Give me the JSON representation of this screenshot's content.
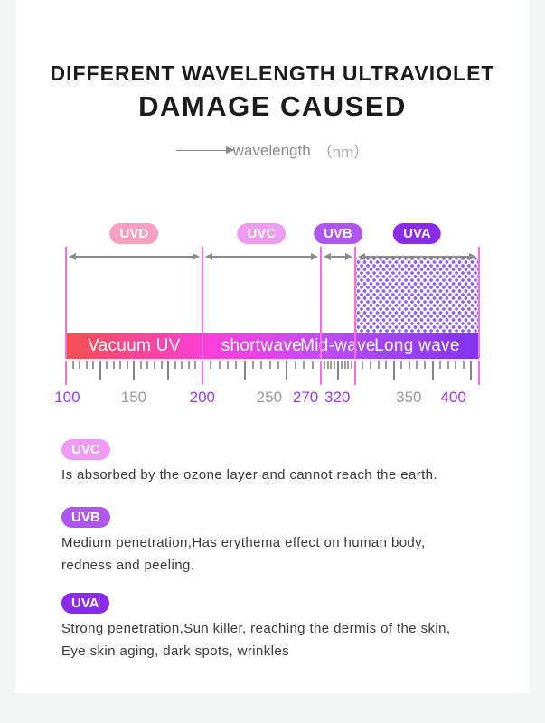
{
  "header": {
    "title_line1": "DIFFERENT WAVELENGTH ULTRAVIOLET",
    "title_line2": "DAMAGE CAUSED",
    "axis_label": "wavelength",
    "axis_unit": "（nm）"
  },
  "chart_data": {
    "type": "band-scale",
    "title": "Different wavelength ultraviolet damage caused",
    "axis": {
      "label": "wavelength",
      "unit": "nm",
      "min": 100,
      "max": 400
    },
    "minor_step_nm": 5,
    "tall_every": 5,
    "bands": [
      {
        "name": "UVD",
        "range_nm": [
          100,
          200
        ],
        "bar_label": "Vacuum UV",
        "badge_color": "#f9a0c0",
        "start_pct": 0,
        "end_pct": 33,
        "dotted": false
      },
      {
        "name": "UVC",
        "range_nm": [
          200,
          270
        ],
        "bar_label": "shortwave",
        "badge_color": "#ee9bf2",
        "start_pct": 33,
        "end_pct": 61.7,
        "dotted": false
      },
      {
        "name": "UVB",
        "range_nm": [
          270,
          320
        ],
        "bar_label": "Mid-wave",
        "badge_color": "#ae56ee",
        "start_pct": 61.7,
        "end_pct": 70,
        "dotted": false
      },
      {
        "name": "UVA",
        "range_nm": [
          320,
          400
        ],
        "bar_label": "Long wave",
        "badge_color": "#8a2be8",
        "start_pct": 70,
        "end_pct": 100,
        "dotted": true
      }
    ],
    "tick_labels": [
      {
        "value": "100",
        "pct": 0.3,
        "highlight": true
      },
      {
        "value": "150",
        "pct": 16.4,
        "highlight": false
      },
      {
        "value": "200",
        "pct": 33,
        "highlight": true
      },
      {
        "value": "250",
        "pct": 49.2,
        "highlight": false
      },
      {
        "value": "270",
        "pct": 58,
        "highlight": true
      },
      {
        "value": "320",
        "pct": 65.7,
        "highlight": true
      },
      {
        "value": "350",
        "pct": 83,
        "highlight": false
      },
      {
        "value": "400",
        "pct": 93.8,
        "highlight": true
      }
    ],
    "bar_gradient": "linear-gradient(90deg, #f4504d 0%, #fb3fd9 34%, #c04ef1 62%, #ae49f2 70%, #8133ee 100%)",
    "colors": {
      "boundary_line": "#ff6ce4",
      "arrow": "#8a8a8a",
      "tick_minor": "#9d9d9d",
      "tick_tall": "#848484",
      "number_highlight": "#9b3df0",
      "number_plain": "#9c9c9c",
      "dot_fill": "#8f63eb"
    }
  },
  "legend": [
    {
      "name": "UVC",
      "color": "#ee9bf2",
      "lines": [
        "Is absorbed by the ozone layer and cannot reach the earth."
      ]
    },
    {
      "name": "UVB",
      "color": "#ae56ee",
      "lines": [
        "Medium penetration,Has erythema effect on human body,",
        "redness and peeling."
      ]
    },
    {
      "name": "UVA",
      "color": "#8a2be8",
      "lines": [
        "Strong penetration,Sun killer, reaching the dermis of the skin,",
        "Eye skin aging, dark spots, wrinkles"
      ]
    }
  ]
}
